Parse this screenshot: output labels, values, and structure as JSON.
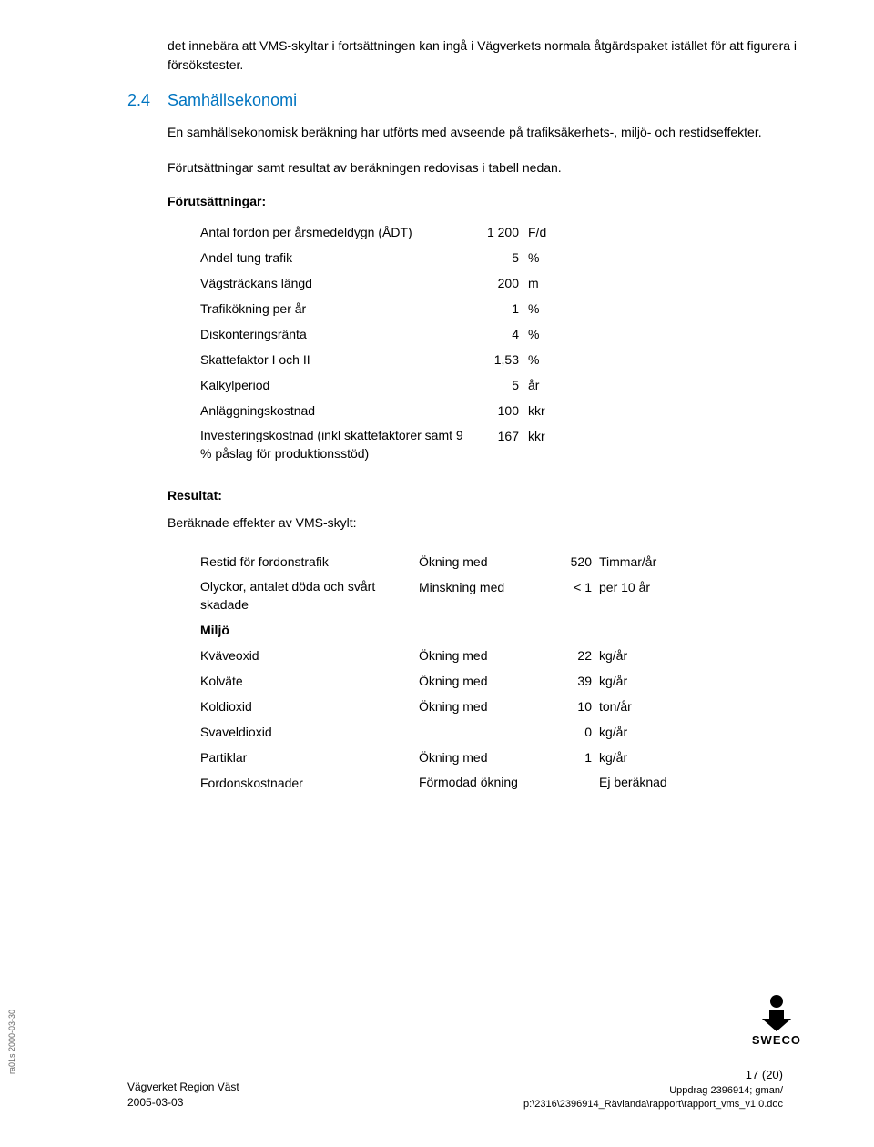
{
  "colors": {
    "heading": "#0074c0",
    "text": "#000000",
    "background": "#ffffff"
  },
  "intro": "det innebära att VMS-skyltar i fortsättningen kan ingå i Vägverkets normala åtgärdspaket istället för att figurera i försökstester.",
  "section": {
    "num": "2.4",
    "title": "Samhällsekonomi"
  },
  "p1": "En samhällsekonomisk beräkning har utförts med avseende på trafiksäkerhets-, miljö- och restidseffekter.",
  "p2": "Förutsättningar samt resultat av beräkningen redovisas i tabell nedan.",
  "forut_header": "Förutsättningar:",
  "table1": {
    "rows": [
      {
        "label": "Antal fordon per årsmedeldygn (ÅDT)",
        "val": "1 200",
        "unit": "F/d"
      },
      {
        "label": "Andel tung trafik",
        "val": "5",
        "unit": "%"
      },
      {
        "label": "Vägsträckans längd",
        "val": "200",
        "unit": "m"
      },
      {
        "label": "Trafikökning per år",
        "val": "1",
        "unit": "%"
      },
      {
        "label": "Diskonteringsränta",
        "val": "4",
        "unit": "%"
      },
      {
        "label": "Skattefaktor I och II",
        "val": "1,53",
        "unit": "%"
      },
      {
        "label": "Kalkylperiod",
        "val": "5",
        "unit": "år"
      },
      {
        "label": "Anläggningskostnad",
        "val": "100",
        "unit": "kkr"
      },
      {
        "label": "Investeringskostnad (inkl skattefaktorer samt 9 % påslag för produktionsstöd)",
        "val": "167",
        "unit": "kkr",
        "multiline": true
      }
    ]
  },
  "result_header": "Resultat:",
  "result_intro": "Beräknade effekter av VMS-skylt:",
  "table2": {
    "rows": [
      {
        "c1": "Restid för fordonstrafik",
        "c2": "Ökning med",
        "c3": "520",
        "c4": "Timmar/år"
      },
      {
        "c1": "Olyckor, antalet döda och svårt skadade",
        "c2": "Minskning med",
        "c3": "< 1",
        "c4": "per 10 år",
        "multiline": true
      },
      {
        "c1": "Miljö",
        "c2": "",
        "c3": "",
        "c4": "",
        "bold": true
      },
      {
        "c1": "Kväveoxid",
        "c2": "Ökning med",
        "c3": "22",
        "c4": "kg/år"
      },
      {
        "c1": "Kolväte",
        "c2": "Ökning med",
        "c3": "39",
        "c4": "kg/år"
      },
      {
        "c1": "Koldioxid",
        "c2": "Ökning med",
        "c3": "10",
        "c4": "ton/år"
      },
      {
        "c1": "Svaveldioxid",
        "c2": "",
        "c3": "0",
        "c4": "kg/år"
      },
      {
        "c1": "Partiklar",
        "c2": "Ökning med",
        "c3": "1",
        "c4": "kg/år"
      },
      {
        "c1": "Fordonskostnader",
        "c2": "Förmodad ökning",
        "c3": "",
        "c4": "Ej beräknad",
        "multiline2": true
      }
    ]
  },
  "footer_left": {
    "l1": "Vägverket Region Väst",
    "l2": "2005-03-03"
  },
  "footer_right": {
    "page": "17 (20)",
    "l1": "Uppdrag 2396914; gman/",
    "l2": "p:\\2316\\2396914_Rävlanda\\rapport\\rapport_vms_v1.0.doc"
  },
  "logo_text": "SWECO",
  "side": "ra01s 2000-03-30"
}
